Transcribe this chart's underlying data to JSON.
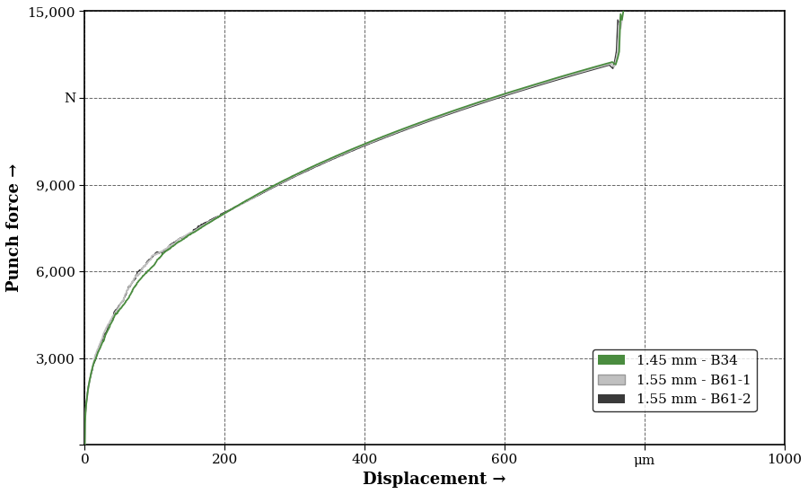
{
  "title": "",
  "xlabel": "Displacement →",
  "ylabel": "Punch force →",
  "xlim": [
    0,
    1000
  ],
  "ylim": [
    0,
    15000
  ],
  "xticks": [
    0,
    200,
    400,
    600,
    800,
    1000
  ],
  "xticklabels": [
    "0",
    "200",
    "400",
    "600",
    "μm",
    "1000"
  ],
  "yticks": [
    0,
    3000,
    6000,
    9000,
    12000,
    15000
  ],
  "yticklabels": [
    "",
    "3,000",
    "6,000",
    "9,000",
    "N",
    "15,000"
  ],
  "legend_labels": [
    "1.45 mm - B34",
    "1.55 mm - B61-1",
    "1.55 mm - B61-2"
  ],
  "legend_colors": [
    "#4a8c3f",
    "#c0c0c0",
    "#3a3a3a"
  ],
  "curve_linewidths": [
    1.3,
    1.3,
    1.0
  ],
  "background_color": "#ffffff",
  "grid_color": "#000000",
  "grid_linestyle": "--",
  "grid_alpha": 0.6,
  "axis_color": "#000000",
  "font_family": "serif",
  "label_fontsize": 13,
  "tick_fontsize": 11,
  "legend_fontsize": 11,
  "curve_exponent": 0.38,
  "curve_x_max": 760,
  "curve_y_scale": 13200,
  "step_x": 750,
  "step_peak": 14900
}
